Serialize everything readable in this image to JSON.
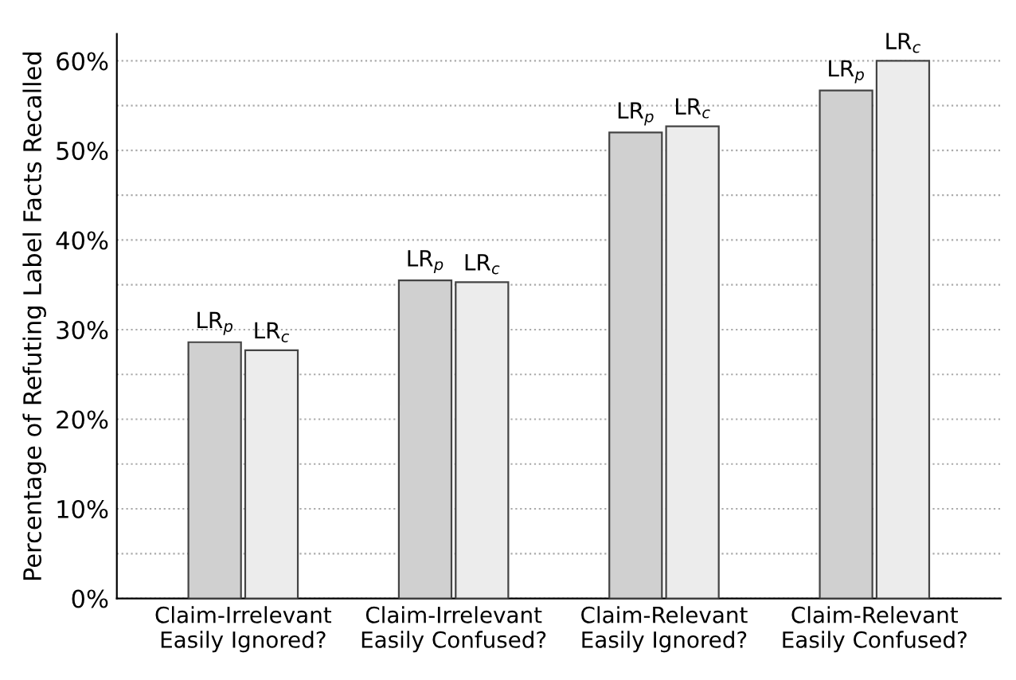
{
  "chart_data": {
    "type": "bar",
    "ylabel": "Percentage of Refuting Label Facts Recalled",
    "categories": [
      "Claim-Irrelevant\nEasily Ignored?",
      "Claim-Irrelevant\nEasily Confused?",
      "Claim-Relevant\nEasily Ignored?",
      "Claim-Relevant\nEasily Confused?"
    ],
    "series": [
      {
        "name": "LR$_{p}$",
        "color": "#d0d0d0",
        "values": [
          28.6,
          35.5,
          52.0,
          56.7
        ]
      },
      {
        "name": "LR$_{c}$",
        "color": "#ececec",
        "values": [
          27.7,
          35.3,
          52.7,
          60.0
        ]
      }
    ],
    "ylim": [
      0,
      63
    ],
    "yticks": [
      {
        "value": 0,
        "label": "0%"
      },
      {
        "value": 5,
        "label": null
      },
      {
        "value": 10,
        "label": "10%"
      },
      {
        "value": 15,
        "label": null
      },
      {
        "value": 20,
        "label": "20%"
      },
      {
        "value": 25,
        "label": null
      },
      {
        "value": 30,
        "label": "30%"
      },
      {
        "value": 35,
        "label": null
      },
      {
        "value": 40,
        "label": "40%"
      },
      {
        "value": 45,
        "label": null
      },
      {
        "value": 50,
        "label": "50%"
      },
      {
        "value": 55,
        "label": null
      },
      {
        "value": 60,
        "label": "60%"
      }
    ],
    "grid": "y",
    "legend": false
  }
}
